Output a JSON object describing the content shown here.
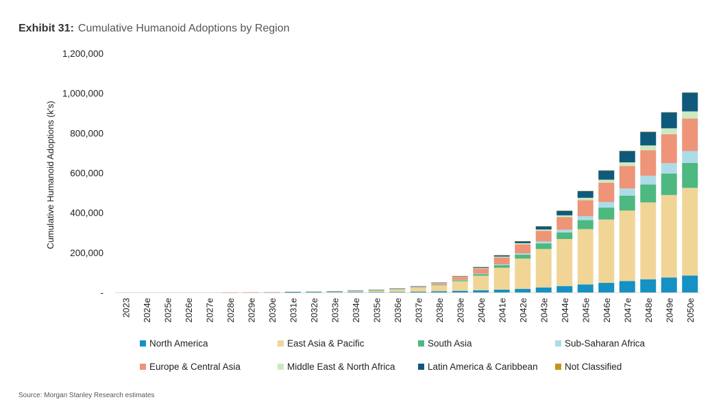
{
  "exhibit": {
    "label": "Exhibit 31:",
    "title": "Cumulative Humanoid Adoptions by Region"
  },
  "source": "Source: Morgan Stanley Research estimates",
  "chart_data": {
    "type": "bar",
    "stacked": true,
    "title": "Cumulative Humanoid Adoptions by Region",
    "xlabel": "",
    "ylabel": "Cumulative Humanoid Adoptions (k's)",
    "ylim": [
      0,
      1200000
    ],
    "yticks": [
      0,
      200000,
      400000,
      600000,
      800000,
      1000000,
      1200000
    ],
    "ytick_labels": [
      "-",
      "200,000",
      "400,000",
      "600,000",
      "800,000",
      "1,000,000",
      "1,200,000"
    ],
    "grid": false,
    "legend_position": "bottom",
    "categories": [
      "2023",
      "2024e",
      "2025e",
      "2026e",
      "2027e",
      "2028e",
      "2029e",
      "2030e",
      "2031e",
      "2032e",
      "2033e",
      "2034e",
      "2035e",
      "2036e",
      "2037e",
      "2038e",
      "2039e",
      "2040e",
      "2041e",
      "2042e",
      "2043e",
      "2044e",
      "2045e",
      "2046e",
      "2047e",
      "2048e",
      "2049e",
      "2050e"
    ],
    "series": [
      {
        "name": "North America",
        "color": "#1591C3",
        "values": [
          0,
          0,
          0,
          0,
          0,
          100,
          200,
          300,
          500,
          800,
          1000,
          1500,
          2000,
          2500,
          4000,
          6000,
          8000,
          11000,
          14000,
          18000,
          25000,
          32000,
          40000,
          48000,
          57000,
          66000,
          75000,
          85000
        ]
      },
      {
        "name": "East Asia & Pacific",
        "color": "#F1D597",
        "values": [
          0,
          0,
          0,
          0,
          0,
          200,
          400,
          800,
          1500,
          2500,
          4000,
          6000,
          9000,
          13000,
          20000,
          30000,
          48000,
          73000,
          110000,
          152000,
          193000,
          236000,
          278000,
          318000,
          354000,
          386000,
          414000,
          440000
        ]
      },
      {
        "name": "South Asia",
        "color": "#4DB880",
        "values": [
          0,
          0,
          0,
          0,
          0,
          0,
          0,
          0,
          100,
          100,
          200,
          300,
          500,
          800,
          1500,
          2500,
          5000,
          8000,
          13000,
          19000,
          28000,
          33000,
          45000,
          60000,
          75000,
          90000,
          108000,
          125000
        ]
      },
      {
        "name": "Sub-Saharan Africa",
        "color": "#ADDCE8",
        "values": [
          0,
          0,
          0,
          0,
          0,
          0,
          0,
          0,
          0,
          0,
          0,
          100,
          200,
          300,
          500,
          800,
          1500,
          2500,
          4000,
          7000,
          10000,
          14000,
          20000,
          28000,
          36000,
          44000,
          52000,
          60000
        ]
      },
      {
        "name": "Europe & Central Asia",
        "color": "#EE9478",
        "values": [
          0,
          0,
          0,
          0,
          0,
          100,
          100,
          200,
          300,
          500,
          800,
          1000,
          1500,
          2500,
          4000,
          8000,
          15000,
          25000,
          35000,
          45000,
          53000,
          63000,
          80000,
          97000,
          113000,
          128000,
          145000,
          163000
        ]
      },
      {
        "name": "Middle East & North Africa",
        "color": "#CDE9BF",
        "values": [
          0,
          0,
          0,
          0,
          0,
          0,
          0,
          0,
          0,
          100,
          100,
          200,
          300,
          400,
          700,
          1000,
          2000,
          3000,
          4000,
          6000,
          7000,
          9000,
          12000,
          15000,
          18000,
          24000,
          30000,
          36000
        ]
      },
      {
        "name": "Latin America & Caribbean",
        "color": "#0F5A7C",
        "values": [
          0,
          0,
          0,
          0,
          0,
          0,
          0,
          0,
          100,
          100,
          200,
          300,
          400,
          600,
          900,
          1400,
          3000,
          5000,
          7000,
          10000,
          16000,
          23000,
          34000,
          46000,
          57000,
          68000,
          80000,
          94000
        ]
      },
      {
        "name": "Not Classified",
        "color": "#C79320",
        "values": [
          0,
          0,
          0,
          0,
          0,
          0,
          0,
          0,
          0,
          0,
          0,
          0,
          0,
          0,
          0,
          0,
          200,
          300,
          400,
          500,
          600,
          700,
          800,
          900,
          1000,
          1100,
          1200,
          1300
        ]
      }
    ]
  }
}
